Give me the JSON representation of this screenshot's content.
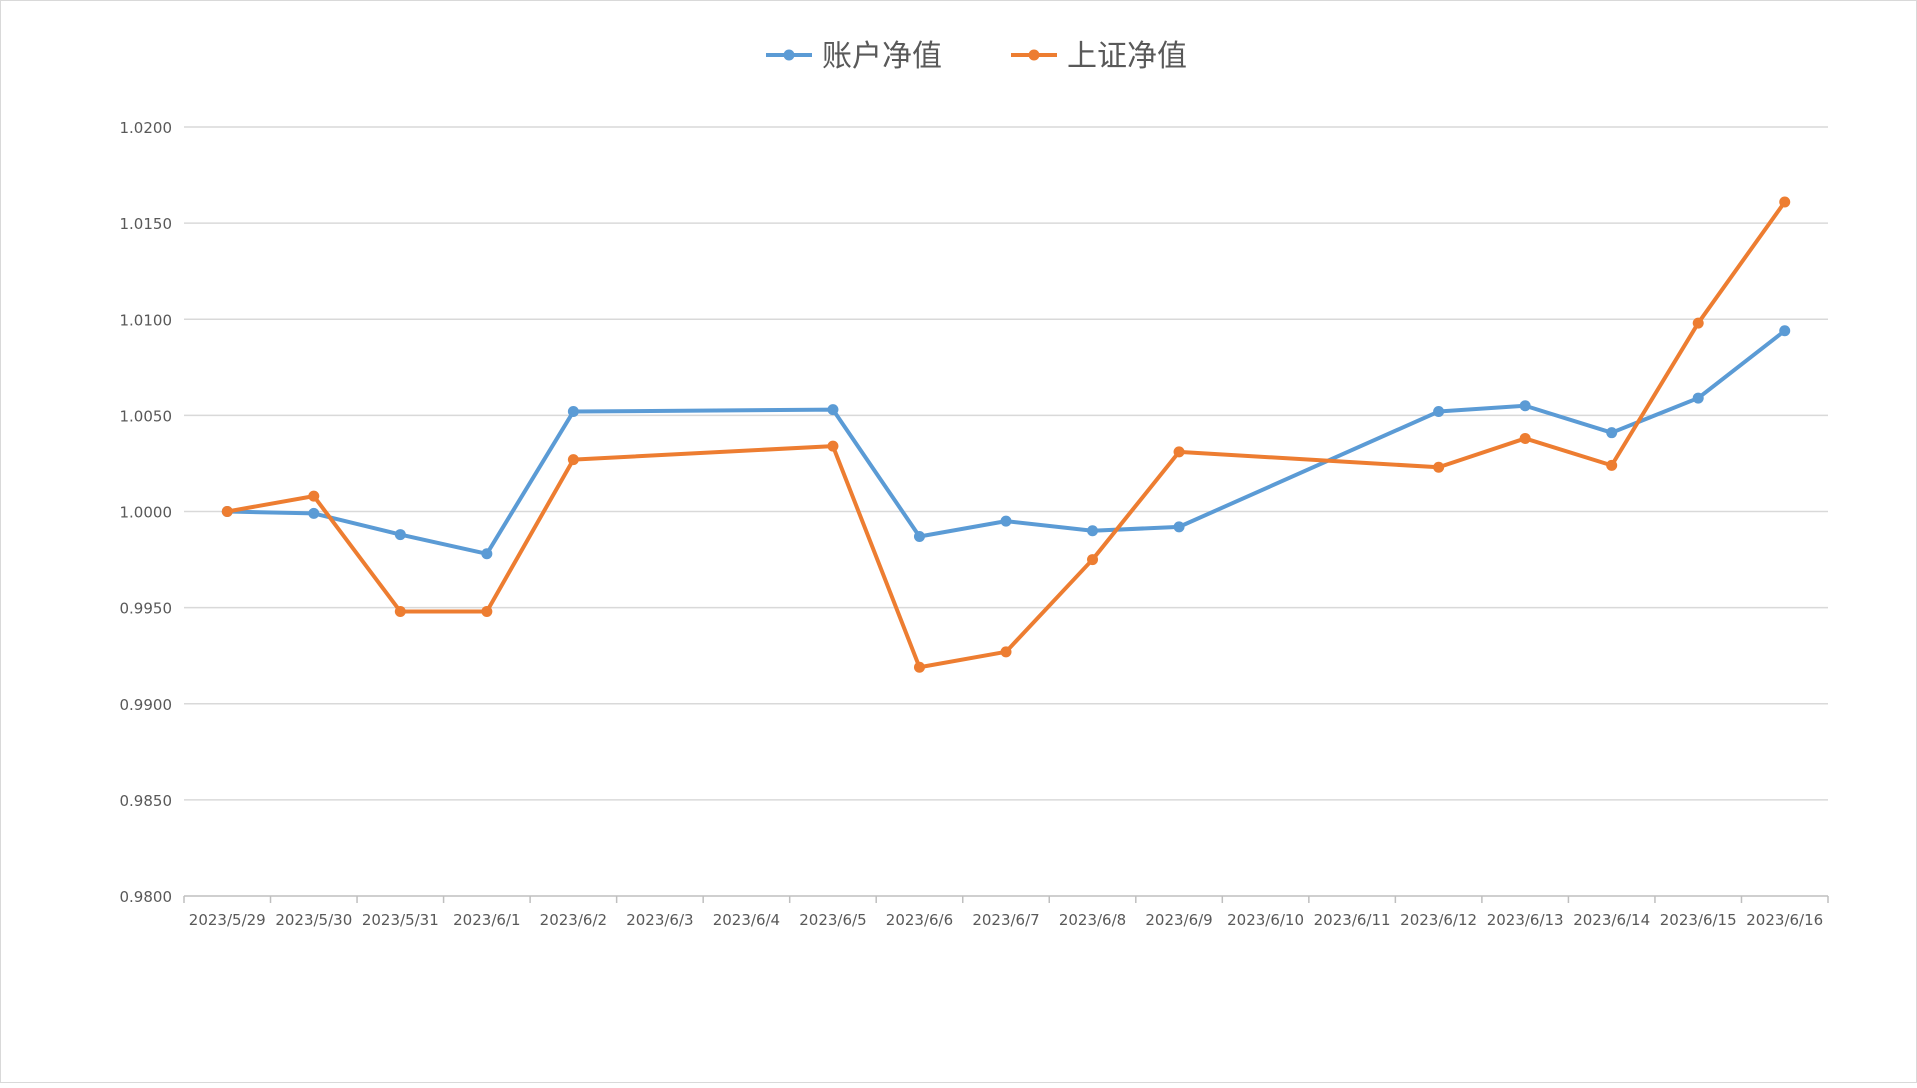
{
  "chart_data": {
    "type": "line",
    "title": "",
    "xlabel": "",
    "ylabel": "",
    "categories": [
      "2023/5/29",
      "2023/5/30",
      "2023/5/31",
      "2023/6/1",
      "2023/6/2",
      "2023/6/3",
      "2023/6/4",
      "2023/6/5",
      "2023/6/6",
      "2023/6/7",
      "2023/6/8",
      "2023/6/9",
      "2023/6/10",
      "2023/6/11",
      "2023/6/12",
      "2023/6/13",
      "2023/6/14",
      "2023/6/15",
      "2023/6/16"
    ],
    "ylim": [
      0.98,
      1.02
    ],
    "yticks": [
      "0.9800",
      "0.9850",
      "0.9900",
      "0.9950",
      "1.0000",
      "1.0050",
      "1.0100",
      "1.0150",
      "1.0200"
    ],
    "grid": true,
    "legend": "top",
    "series": [
      {
        "name": "账户净值",
        "color": "#5B9BD5",
        "values": [
          1.0,
          0.9999,
          0.9988,
          0.9978,
          1.0052,
          null,
          null,
          1.0053,
          0.9987,
          0.9995,
          0.999,
          0.9992,
          null,
          null,
          1.0052,
          1.0055,
          1.0041,
          1.0059,
          1.0094
        ]
      },
      {
        "name": "上证净值",
        "color": "#ED7D31",
        "values": [
          1.0,
          1.0008,
          0.9948,
          0.9948,
          1.0027,
          null,
          null,
          1.0034,
          0.9919,
          0.9927,
          0.9975,
          1.0031,
          null,
          null,
          1.0023,
          1.0038,
          1.0024,
          1.0098,
          1.0161
        ]
      }
    ]
  }
}
